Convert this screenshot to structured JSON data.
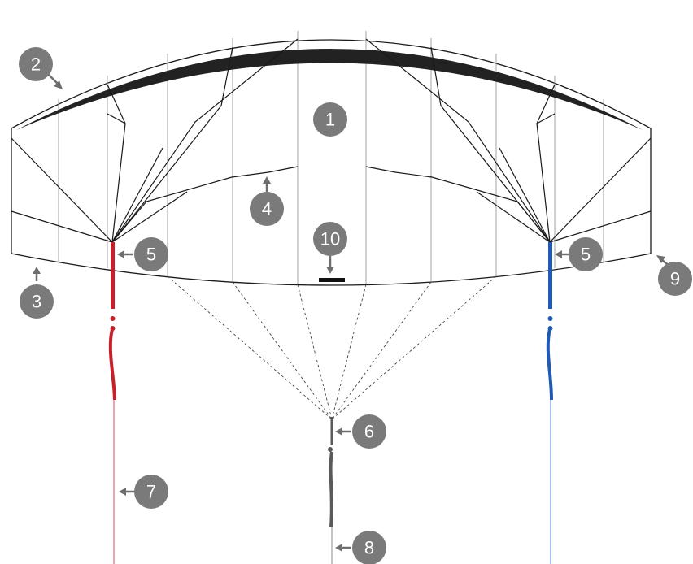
{
  "diagram": {
    "colors": {
      "outline": "#1a1a1a",
      "panel_seam": "#9a9a9a",
      "leading_edge": "#222222",
      "left_line": "#c8202a",
      "right_line": "#1f5bb5",
      "center_line": "#5a5a5a",
      "badge": "#7a7a7a",
      "arrow": "#6e6e6e",
      "badge_text": "#ffffff"
    },
    "callouts": [
      {
        "id": "callout-1",
        "label": "1",
        "has_arrow": false
      },
      {
        "id": "callout-2",
        "label": "2",
        "has_arrow": true
      },
      {
        "id": "callout-3",
        "label": "3",
        "has_arrow": true
      },
      {
        "id": "callout-4",
        "label": "4",
        "has_arrow": true
      },
      {
        "id": "callout-5-left",
        "label": "5",
        "has_arrow": true
      },
      {
        "id": "callout-5-right",
        "label": "5",
        "has_arrow": true
      },
      {
        "id": "callout-6",
        "label": "6",
        "has_arrow": true
      },
      {
        "id": "callout-7",
        "label": "7",
        "has_arrow": true
      },
      {
        "id": "callout-8",
        "label": "8",
        "has_arrow": true
      },
      {
        "id": "callout-9",
        "label": "9",
        "has_arrow": true
      },
      {
        "id": "callout-10",
        "label": "10",
        "has_arrow": true
      }
    ]
  }
}
